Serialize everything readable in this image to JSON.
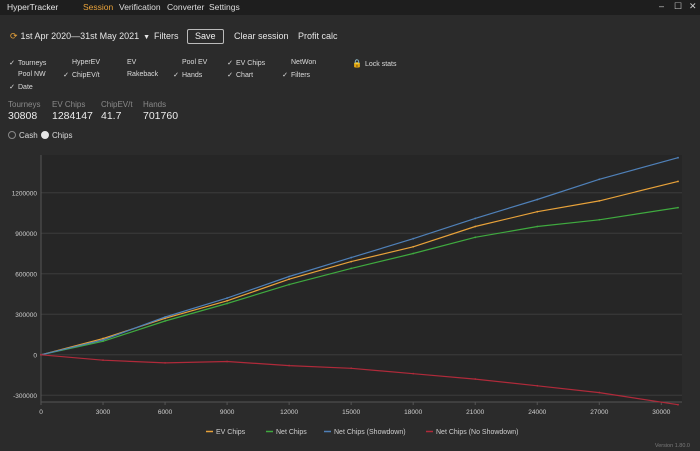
{
  "app": {
    "title": "HyperTracker",
    "version": "Version 1.80.0"
  },
  "nav": [
    {
      "label": "Session",
      "active": true
    },
    {
      "label": "Verification",
      "active": false
    },
    {
      "label": "Converter",
      "active": false
    },
    {
      "label": "Settings",
      "active": false
    }
  ],
  "window_controls": {
    "minimize": "–",
    "maximize": "☐",
    "close": "✕"
  },
  "toolbar": {
    "date_range": "1st Apr 2020—31st May 2021",
    "filters": "Filters",
    "save": "Save",
    "clear_session": "Clear session",
    "profit_calc": "Profit calc"
  },
  "checkboxes": [
    {
      "label": "Tourneys",
      "checked": true
    },
    {
      "label": "HyperEV",
      "checked": false
    },
    {
      "label": "EV",
      "checked": false
    },
    {
      "label": "Pool EV",
      "checked": false
    },
    {
      "label": "EV Chips",
      "checked": true
    },
    {
      "label": "NetWon",
      "checked": false
    },
    {
      "label": "Pool NW",
      "checked": false
    },
    {
      "label": "ChipEV/t",
      "checked": true
    },
    {
      "label": "Rakeback",
      "checked": false
    },
    {
      "label": "Hands",
      "checked": true
    },
    {
      "label": "Chart",
      "checked": true
    },
    {
      "label": "Filters",
      "checked": true
    },
    {
      "label": "Date",
      "checked": true
    }
  ],
  "lock_stats": "Lock stats",
  "stats": [
    {
      "label": "Tourneys",
      "value": "30808"
    },
    {
      "label": "EV Chips",
      "value": "1284147"
    },
    {
      "label": "ChipEV/t",
      "value": "41.7"
    },
    {
      "label": "Hands",
      "value": "701760"
    }
  ],
  "mode": {
    "cash": "Cash",
    "chips": "Chips",
    "selected": "chips"
  },
  "chart_data": {
    "type": "line",
    "xlim": [
      0,
      31000
    ],
    "ylim": [
      -350000,
      1480000
    ],
    "x_ticks": [
      0,
      3000,
      6000,
      9000,
      12000,
      15000,
      18000,
      21000,
      24000,
      27000,
      30000
    ],
    "y_ticks": [
      -300000,
      0,
      300000,
      600000,
      900000,
      1200000
    ],
    "x_tick_labels": [
      "0",
      "3000",
      "6000",
      "9000",
      "12000",
      "15000",
      "18000",
      "21000",
      "24000",
      "27000",
      "30000"
    ],
    "y_tick_labels": [
      "-300000",
      "0",
      "300000",
      "600000",
      "900000",
      "1200000"
    ],
    "grid": true,
    "legend_position": "bottom",
    "x": [
      0,
      3000,
      6000,
      9000,
      12000,
      15000,
      18000,
      21000,
      24000,
      27000,
      30808
    ],
    "series": [
      {
        "name": "EV Chips",
        "color": "#e8a23a",
        "values": [
          0,
          120000,
          270000,
          400000,
          560000,
          690000,
          800000,
          950000,
          1060000,
          1140000,
          1284147
        ]
      },
      {
        "name": "Net Chips",
        "color": "#3faa3f",
        "values": [
          0,
          100000,
          250000,
          380000,
          520000,
          640000,
          750000,
          870000,
          950000,
          1000000,
          1090000
        ]
      },
      {
        "name": "Net Chips (Showdown)",
        "color": "#4f80b8",
        "values": [
          0,
          110000,
          280000,
          420000,
          580000,
          720000,
          860000,
          1010000,
          1150000,
          1300000,
          1460000
        ]
      },
      {
        "name": "Net Chips (No Showdown)",
        "color": "#b02a3a",
        "values": [
          0,
          -40000,
          -60000,
          -50000,
          -80000,
          -100000,
          -140000,
          -180000,
          -230000,
          -280000,
          -370000
        ]
      }
    ]
  }
}
